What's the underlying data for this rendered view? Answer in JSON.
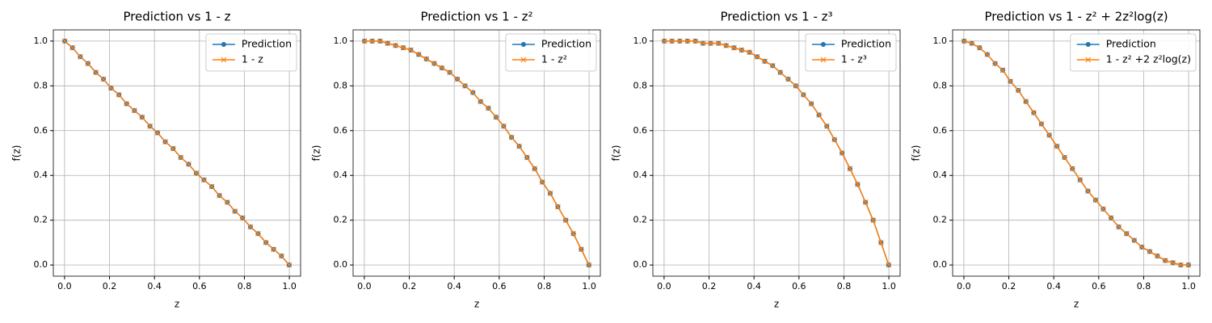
{
  "chart_data": [
    {
      "type": "line",
      "title": "Prediction vs 1 - z",
      "xlabel": "z",
      "ylabel": "f(z)",
      "x": [
        0.001,
        0.035,
        0.07,
        0.104,
        0.139,
        0.173,
        0.207,
        0.242,
        0.276,
        0.311,
        0.345,
        0.38,
        0.414,
        0.448,
        0.483,
        0.517,
        0.552,
        0.586,
        0.62,
        0.655,
        0.689,
        0.724,
        0.758,
        0.792,
        0.827,
        0.861,
        0.896,
        0.93,
        0.965,
        0.999
      ],
      "series": [
        {
          "name": "Prediction",
          "color": "#1f77b4",
          "marker": "o",
          "values": [
            1.0,
            0.97,
            0.93,
            0.9,
            0.86,
            0.83,
            0.79,
            0.76,
            0.72,
            0.69,
            0.66,
            0.62,
            0.59,
            0.55,
            0.52,
            0.48,
            0.45,
            0.41,
            0.38,
            0.35,
            0.31,
            0.28,
            0.24,
            0.21,
            0.17,
            0.14,
            0.1,
            0.07,
            0.04,
            0.0
          ]
        },
        {
          "name": "1 - z",
          "color": "#ff7f0e",
          "marker": "x",
          "values": [
            1.0,
            0.97,
            0.93,
            0.9,
            0.86,
            0.83,
            0.79,
            0.76,
            0.72,
            0.69,
            0.66,
            0.62,
            0.59,
            0.55,
            0.52,
            0.48,
            0.45,
            0.41,
            0.38,
            0.35,
            0.31,
            0.28,
            0.24,
            0.21,
            0.17,
            0.14,
            0.1,
            0.07,
            0.04,
            0.0
          ]
        }
      ],
      "xlim": [
        -0.05,
        1.05
      ],
      "ylim": [
        -0.05,
        1.05
      ],
      "xticks": [
        {
          "value": 0,
          "label": "0.0"
        },
        {
          "value": 0.2,
          "label": "0.2"
        },
        {
          "value": 0.4,
          "label": "0.4"
        },
        {
          "value": 0.6,
          "label": "0.6"
        },
        {
          "value": 0.8,
          "label": "0.8"
        },
        {
          "value": 1,
          "label": "1.0"
        }
      ],
      "yticks": [
        {
          "value": 0,
          "label": "0.0"
        },
        {
          "value": 0.2,
          "label": "0.2"
        },
        {
          "value": 0.4,
          "label": "0.4"
        },
        {
          "value": 0.6,
          "label": "0.6"
        },
        {
          "value": 0.8,
          "label": "0.8"
        },
        {
          "value": 1,
          "label": "1.0"
        }
      ],
      "grid": true,
      "legend": "upper right"
    },
    {
      "type": "line",
      "title": "Prediction vs 1 - z²",
      "xlabel": "z",
      "ylabel": "f(z)",
      "x": [
        0.001,
        0.035,
        0.07,
        0.104,
        0.139,
        0.173,
        0.207,
        0.242,
        0.276,
        0.311,
        0.345,
        0.38,
        0.414,
        0.448,
        0.483,
        0.517,
        0.552,
        0.586,
        0.62,
        0.655,
        0.689,
        0.724,
        0.758,
        0.792,
        0.827,
        0.861,
        0.896,
        0.93,
        0.965,
        0.999
      ],
      "series": [
        {
          "name": "Prediction",
          "color": "#1f77b4",
          "marker": "o",
          "values": [
            1.0,
            1.0,
            1.0,
            0.99,
            0.98,
            0.97,
            0.96,
            0.94,
            0.92,
            0.9,
            0.88,
            0.86,
            0.83,
            0.8,
            0.77,
            0.73,
            0.7,
            0.66,
            0.62,
            0.57,
            0.53,
            0.48,
            0.43,
            0.37,
            0.32,
            0.26,
            0.2,
            0.14,
            0.07,
            0.0
          ]
        },
        {
          "name": "1 - z²",
          "color": "#ff7f0e",
          "marker": "x",
          "values": [
            1.0,
            1.0,
            1.0,
            0.99,
            0.98,
            0.97,
            0.96,
            0.94,
            0.92,
            0.9,
            0.88,
            0.86,
            0.83,
            0.8,
            0.77,
            0.73,
            0.7,
            0.66,
            0.62,
            0.57,
            0.53,
            0.48,
            0.43,
            0.37,
            0.32,
            0.26,
            0.2,
            0.14,
            0.07,
            0.0
          ]
        }
      ],
      "xlim": [
        -0.05,
        1.05
      ],
      "ylim": [
        -0.05,
        1.05
      ],
      "xticks": [
        {
          "value": 0,
          "label": "0.0"
        },
        {
          "value": 0.2,
          "label": "0.2"
        },
        {
          "value": 0.4,
          "label": "0.4"
        },
        {
          "value": 0.6,
          "label": "0.6"
        },
        {
          "value": 0.8,
          "label": "0.8"
        },
        {
          "value": 1,
          "label": "1.0"
        }
      ],
      "yticks": [
        {
          "value": 0,
          "label": "0.0"
        },
        {
          "value": 0.2,
          "label": "0.2"
        },
        {
          "value": 0.4,
          "label": "0.4"
        },
        {
          "value": 0.6,
          "label": "0.6"
        },
        {
          "value": 0.8,
          "label": "0.8"
        },
        {
          "value": 1,
          "label": "1.0"
        }
      ],
      "grid": true,
      "legend": "upper right"
    },
    {
      "type": "line",
      "title": "Prediction vs 1 - z³",
      "xlabel": "z",
      "ylabel": "f(z)",
      "x": [
        0.001,
        0.035,
        0.07,
        0.104,
        0.139,
        0.173,
        0.207,
        0.242,
        0.276,
        0.311,
        0.345,
        0.38,
        0.414,
        0.448,
        0.483,
        0.517,
        0.552,
        0.586,
        0.62,
        0.655,
        0.689,
        0.724,
        0.758,
        0.792,
        0.827,
        0.861,
        0.896,
        0.93,
        0.965,
        0.999
      ],
      "series": [
        {
          "name": "Prediction",
          "color": "#1f77b4",
          "marker": "o",
          "values": [
            1.0,
            1.0,
            1.0,
            1.0,
            1.0,
            0.99,
            0.99,
            0.99,
            0.98,
            0.97,
            0.96,
            0.95,
            0.93,
            0.91,
            0.89,
            0.86,
            0.83,
            0.8,
            0.76,
            0.72,
            0.67,
            0.62,
            0.56,
            0.5,
            0.43,
            0.36,
            0.28,
            0.2,
            0.1,
            0.0
          ]
        },
        {
          "name": "1 - z³",
          "color": "#ff7f0e",
          "marker": "x",
          "values": [
            1.0,
            1.0,
            1.0,
            1.0,
            1.0,
            0.99,
            0.99,
            0.99,
            0.98,
            0.97,
            0.96,
            0.95,
            0.93,
            0.91,
            0.89,
            0.86,
            0.83,
            0.8,
            0.76,
            0.72,
            0.67,
            0.62,
            0.56,
            0.5,
            0.43,
            0.36,
            0.28,
            0.2,
            0.1,
            0.0
          ]
        }
      ],
      "xlim": [
        -0.05,
        1.05
      ],
      "ylim": [
        -0.05,
        1.05
      ],
      "xticks": [
        {
          "value": 0,
          "label": "0.0"
        },
        {
          "value": 0.2,
          "label": "0.2"
        },
        {
          "value": 0.4,
          "label": "0.4"
        },
        {
          "value": 0.6,
          "label": "0.6"
        },
        {
          "value": 0.8,
          "label": "0.8"
        },
        {
          "value": 1,
          "label": "1.0"
        }
      ],
      "yticks": [
        {
          "value": 0,
          "label": "0.0"
        },
        {
          "value": 0.2,
          "label": "0.2"
        },
        {
          "value": 0.4,
          "label": "0.4"
        },
        {
          "value": 0.6,
          "label": "0.6"
        },
        {
          "value": 0.8,
          "label": "0.8"
        },
        {
          "value": 1,
          "label": "1.0"
        }
      ],
      "grid": true,
      "legend": "upper right"
    },
    {
      "type": "line",
      "title": "Prediction vs 1 - z² + 2z²log(z)",
      "xlabel": "z",
      "ylabel": "f(z)",
      "x": [
        0.001,
        0.035,
        0.07,
        0.104,
        0.139,
        0.173,
        0.207,
        0.242,
        0.276,
        0.311,
        0.345,
        0.38,
        0.414,
        0.448,
        0.483,
        0.517,
        0.552,
        0.586,
        0.62,
        0.655,
        0.689,
        0.724,
        0.758,
        0.792,
        0.827,
        0.861,
        0.896,
        0.93,
        0.965,
        0.999
      ],
      "series": [
        {
          "name": "Prediction",
          "color": "#1f77b4",
          "marker": "o",
          "values": [
            1.0,
            0.99,
            0.97,
            0.94,
            0.9,
            0.87,
            0.82,
            0.78,
            0.73,
            0.68,
            0.63,
            0.58,
            0.53,
            0.48,
            0.43,
            0.38,
            0.33,
            0.29,
            0.25,
            0.21,
            0.17,
            0.14,
            0.11,
            0.08,
            0.06,
            0.04,
            0.02,
            0.01,
            0.0,
            0.0
          ]
        },
        {
          "name": "1 - z² +2 z²log(z)",
          "color": "#ff7f0e",
          "marker": "x",
          "values": [
            1.0,
            0.99,
            0.97,
            0.94,
            0.9,
            0.87,
            0.82,
            0.78,
            0.73,
            0.68,
            0.63,
            0.58,
            0.53,
            0.48,
            0.43,
            0.38,
            0.33,
            0.29,
            0.25,
            0.21,
            0.17,
            0.14,
            0.11,
            0.08,
            0.06,
            0.04,
            0.02,
            0.01,
            0.0,
            0.0
          ]
        }
      ],
      "xlim": [
        -0.05,
        1.05
      ],
      "ylim": [
        -0.05,
        1.05
      ],
      "xticks": [
        {
          "value": 0,
          "label": "0.0"
        },
        {
          "value": 0.2,
          "label": "0.2"
        },
        {
          "value": 0.4,
          "label": "0.4"
        },
        {
          "value": 0.6,
          "label": "0.6"
        },
        {
          "value": 0.8,
          "label": "0.8"
        },
        {
          "value": 1,
          "label": "1.0"
        }
      ],
      "yticks": [
        {
          "value": 0,
          "label": "0.0"
        },
        {
          "value": 0.2,
          "label": "0.2"
        },
        {
          "value": 0.4,
          "label": "0.4"
        },
        {
          "value": 0.6,
          "label": "0.6"
        },
        {
          "value": 0.8,
          "label": "0.8"
        },
        {
          "value": 1,
          "label": "1.0"
        }
      ],
      "grid": true,
      "legend": "upper right"
    }
  ]
}
